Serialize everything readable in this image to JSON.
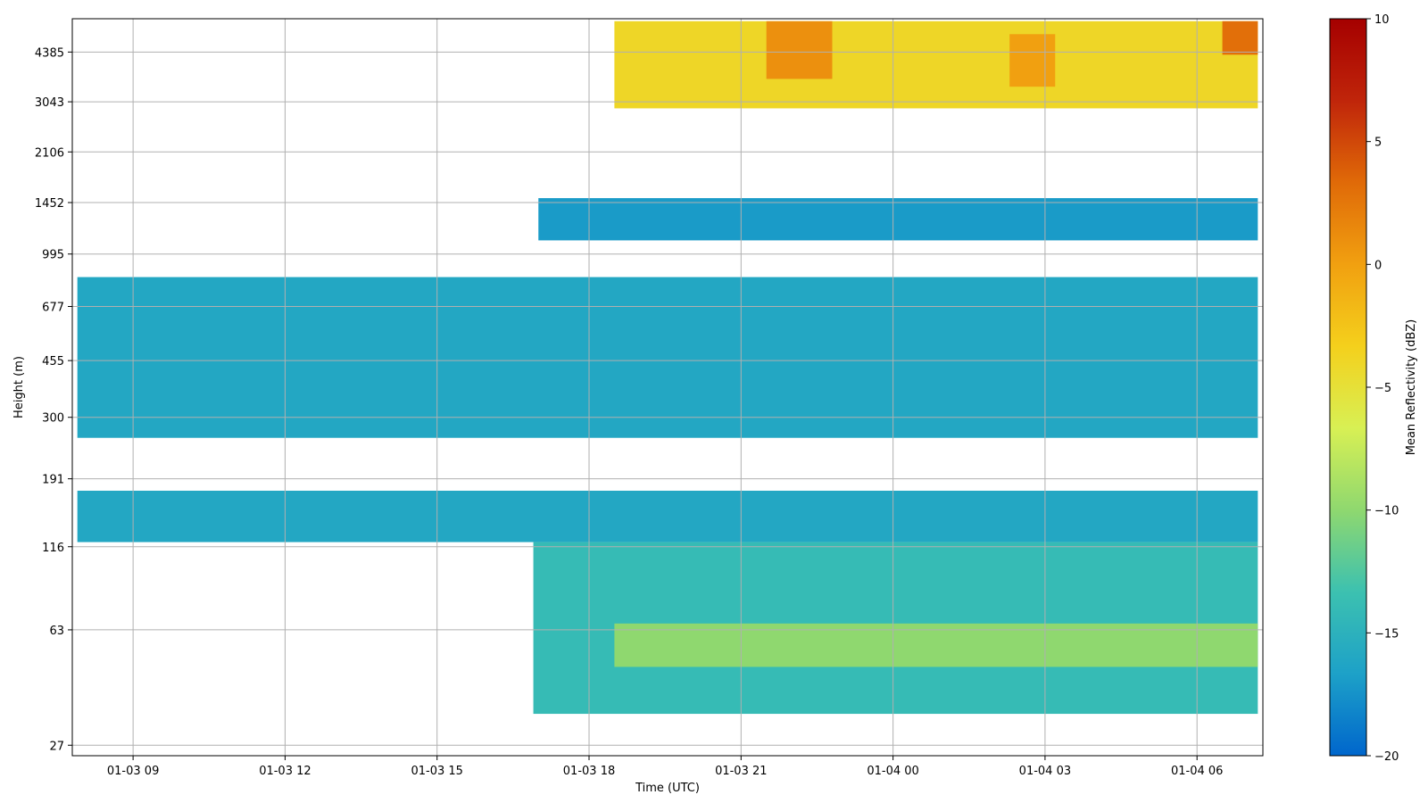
{
  "chart_data": {
    "type": "heatmap",
    "xlabel": "Time (UTC)",
    "ylabel": "Height (m)",
    "colorbar_label": "Mean Reflectivity (dBZ)",
    "colorbar_range": [
      -20,
      10
    ],
    "colorbar_ticks": [
      "10",
      "5",
      "0",
      "−5",
      "−10",
      "−15",
      "−20"
    ],
    "colorbar_tick_values": [
      10,
      5,
      0,
      -5,
      -10,
      -15,
      -20
    ],
    "colormap": [
      "#0066cc",
      "#1da1c8",
      "#3cc1b0",
      "#8fd86f",
      "#d8f054",
      "#f4d01c",
      "#f1a010",
      "#e06a08",
      "#c0250a",
      "#a50000"
    ],
    "x_ticks": [
      "01-03 09",
      "01-03 12",
      "01-03 15",
      "01-03 18",
      "01-03 21",
      "01-04 00",
      "01-04 03",
      "01-04 06"
    ],
    "x_tick_hours": [
      9,
      12,
      15,
      18,
      21,
      24,
      27,
      30
    ],
    "x_range_hours": [
      7.8,
      31.3
    ],
    "y_ticks": [
      "27",
      "63",
      "116",
      "191",
      "300",
      "455",
      "677",
      "995",
      "1452",
      "2106",
      "3043",
      "4385"
    ],
    "y_tick_values": [
      27,
      63,
      116,
      191,
      300,
      455,
      677,
      995,
      1452,
      2106,
      3043,
      4385
    ],
    "y_range": [
      25,
      5600
    ],
    "grid": true,
    "regions": [
      {
        "name": "boundary layer band",
        "t_start": 7.9,
        "t_end": 31.2,
        "h_bottom": 258,
        "h_top": 840,
        "dbz": -16
      },
      {
        "name": "lower band",
        "t_start": 7.9,
        "t_end": 31.2,
        "h_bottom": 120,
        "h_top": 175,
        "dbz": -16
      },
      {
        "name": "near-surface layer",
        "t_start": 16.9,
        "t_end": 31.2,
        "h_bottom": 34,
        "h_top": 120,
        "dbz": -14
      },
      {
        "name": "near-surface maximum",
        "t_start": 18.5,
        "t_end": 31.2,
        "h_bottom": 48,
        "h_top": 66,
        "dbz": -10
      },
      {
        "name": "cloud near 1452 m",
        "t_start": 17.0,
        "t_end": 31.2,
        "h_bottom": 1100,
        "h_top": 1500,
        "dbz": -17
      },
      {
        "name": "upper cloud",
        "t_start": 18.5,
        "t_end": 31.2,
        "h_bottom": 2900,
        "h_top": 5500,
        "dbz": -4
      },
      {
        "name": "upper cloud core",
        "t_start": 21.5,
        "t_end": 22.8,
        "h_bottom": 3600,
        "h_top": 5500,
        "dbz": 1
      },
      {
        "name": "upper cloud core",
        "t_start": 26.3,
        "t_end": 27.2,
        "h_bottom": 3400,
        "h_top": 5000,
        "dbz": 0
      },
      {
        "name": "upper cloud core",
        "t_start": 30.5,
        "t_end": 31.2,
        "h_bottom": 4300,
        "h_top": 5500,
        "dbz": 3
      }
    ]
  }
}
